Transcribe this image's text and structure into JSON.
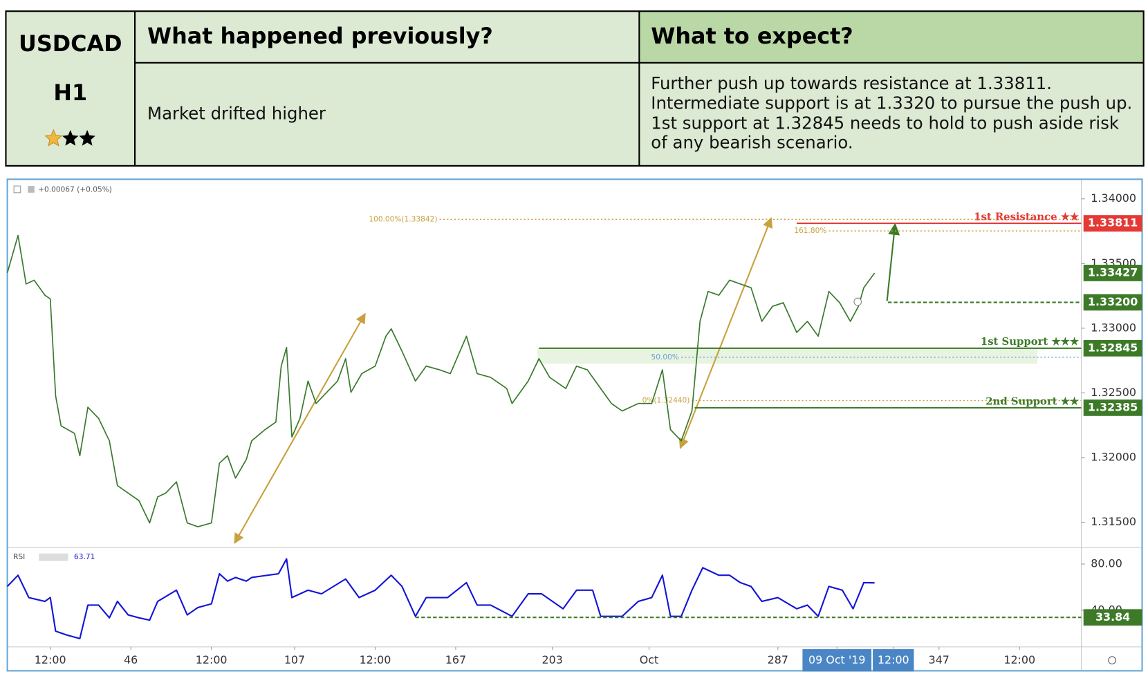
{
  "header": {
    "symbol": "USDCAD",
    "timeframe": "H1"
  },
  "table": {
    "columns": [
      "What happened previously?",
      "What to expect?"
    ],
    "rows": [
      [
        "Market drifted higher",
        [
          "Further push up towards resistance at 1.33811.",
          "Intermediate support is at 1.3320 to pursue the push up.",
          "1st support at 1.32845 needs to hold to push aside risk",
          "of any bearish scenario."
        ]
      ]
    ]
  },
  "chart_data": [
    {
      "type": "line",
      "subtitle": "+0.00067 (+0.05%)",
      "color": "#3a7a2e",
      "x": [
        0,
        4,
        7,
        10,
        14,
        16,
        18,
        20,
        25,
        27,
        30,
        34,
        38,
        41,
        45,
        49,
        53,
        56,
        59,
        63,
        67,
        71,
        76,
        79,
        82,
        85,
        89,
        91,
        96,
        100,
        102,
        104,
        106,
        109,
        112,
        115,
        119,
        123,
        126,
        128,
        132,
        137,
        141,
        143,
        147,
        152,
        156,
        161,
        165,
        171,
        175,
        180,
        186,
        188,
        194,
        198,
        202,
        208,
        212,
        216,
        221,
        225,
        229,
        235,
        240,
        244,
        247,
        251,
        255,
        258,
        261,
        265,
        269,
        273,
        277,
        281,
        285,
        289,
        294,
        298,
        302,
        306,
        310,
        314,
        317,
        319,
        323
      ],
      "values": [
        1.33428,
        1.33717,
        1.33342,
        1.33371,
        1.33255,
        1.33226,
        1.32476,
        1.32245,
        1.32187,
        1.32014,
        1.32389,
        1.32303,
        1.32129,
        1.31783,
        1.31725,
        1.31667,
        1.31494,
        1.31696,
        1.31725,
        1.31812,
        1.31494,
        1.31465,
        1.31494,
        1.31956,
        1.32014,
        1.31841,
        1.31985,
        1.32129,
        1.32216,
        1.32274,
        1.32707,
        1.32851,
        1.32158,
        1.32303,
        1.32591,
        1.32418,
        1.32505,
        1.32591,
        1.32764,
        1.32505,
        1.32649,
        1.32707,
        1.32938,
        1.32995,
        1.32822,
        1.32591,
        1.32707,
        1.32678,
        1.32649,
        1.32938,
        1.32649,
        1.3262,
        1.32534,
        1.32418,
        1.32591,
        1.32764,
        1.3262,
        1.32534,
        1.32707,
        1.32678,
        1.32534,
        1.32418,
        1.3236,
        1.32418,
        1.32418,
        1.32678,
        1.32216,
        1.32129,
        1.3236,
        1.33053,
        1.33284,
        1.33255,
        1.33371,
        1.33342,
        1.33313,
        1.33053,
        1.33169,
        1.33197,
        1.32967,
        1.33053,
        1.32938,
        1.33284,
        1.33197,
        1.33053,
        1.33169,
        1.33313,
        1.33427
      ],
      "xlim": [
        0,
        400
      ],
      "xticks": [
        {
          "value": 16,
          "label": "12:00"
        },
        46,
        {
          "value": 76,
          "label": "12:00"
        },
        107,
        {
          "value": 137,
          "label": "12:00"
        },
        167,
        203,
        {
          "value": 239,
          "label": "Oct"
        },
        287,
        {
          "value": 309,
          "label": "09 Oct '19"
        },
        {
          "value": 330,
          "label": "12:00"
        },
        347,
        {
          "value": 377,
          "label": "12:00"
        }
      ],
      "ylim": [
        1.3131,
        1.3414
      ],
      "yticks": [
        {
          "value": 1.34,
          "label": "1.34000"
        },
        {
          "value": 1.335,
          "label": "1.33500"
        },
        {
          "value": 1.33,
          "label": "1.33000"
        },
        {
          "value": 1.325,
          "label": "1.32500"
        },
        {
          "value": 1.32,
          "label": "1.32000"
        },
        {
          "value": 1.315,
          "label": "1.31500"
        }
      ],
      "levels": [
        {
          "name": "1st Resistance ★★",
          "value": 1.33811,
          "color": "#e53935",
          "line": "solid",
          "x_from": 294
        },
        {
          "value": 1.332,
          "value_label": "1.33200",
          "color": "#3d7a28",
          "line": "dashed",
          "x_from": 328
        },
        {
          "name": "1st Support ★★★",
          "value": 1.32845,
          "color": "#3d7a28",
          "line": "solid",
          "x_from": 198
        },
        {
          "name": "2nd Support ★★",
          "value": 1.32385,
          "color": "#3d7a28",
          "line": "solid",
          "x_from": 256
        }
      ],
      "fib": [
        {
          "label": "100.00%(1.33842)",
          "value": 1.33842,
          "color": "#c9a13e",
          "x_from": 161
        },
        {
          "label": "161.80%",
          "value": 1.33752,
          "color": "#c9a13e",
          "x_from": 306
        },
        {
          "label": "50.00%",
          "value": 1.32776,
          "color": "#6fa0d0",
          "x_from": 251
        },
        {
          "label": "0%(1.32440)",
          "value": 1.3244,
          "color": "#c9a13e",
          "x_from": 255
        }
      ]
    },
    {
      "type": "line",
      "title": "RSI",
      "color": "#1515d6",
      "x": [
        0,
        4,
        8,
        14,
        16,
        18,
        22,
        27,
        30,
        34,
        38,
        41,
        45,
        49,
        53,
        56,
        63,
        67,
        71,
        76,
        79,
        82,
        85,
        89,
        91,
        101,
        104,
        106,
        112,
        117,
        126,
        131,
        137,
        143,
        147,
        152,
        156,
        164,
        171,
        175,
        180,
        188,
        194,
        199,
        207,
        212,
        218,
        221,
        229,
        235,
        240,
        244,
        247,
        251,
        255,
        259,
        265,
        269,
        273,
        277,
        281,
        287,
        294,
        298,
        302,
        306,
        311,
        315,
        319,
        323
      ],
      "values": [
        60.6,
        70.3,
        51.0,
        47.7,
        51.0,
        21.9,
        18.7,
        15.5,
        44.5,
        44.5,
        33.5,
        47.7,
        36.0,
        33.5,
        31.5,
        47.7,
        57.4,
        36.0,
        42.4,
        45.6,
        71.6,
        65.2,
        68.4,
        65.2,
        68.4,
        71.6,
        84.5,
        51.0,
        57.4,
        54.2,
        67.1,
        51.0,
        57.4,
        70.3,
        60.6,
        34.8,
        51.0,
        51.0,
        63.9,
        44.5,
        44.5,
        34.8,
        54.2,
        54.2,
        41.3,
        57.4,
        57.4,
        34.8,
        34.8,
        47.7,
        51.0,
        70.3,
        34.8,
        34.8,
        57.4,
        76.8,
        70.3,
        70.3,
        63.9,
        60.6,
        47.7,
        51.0,
        41.3,
        44.5,
        34.8,
        60.6,
        57.4,
        41.3,
        63.9,
        63.71
      ],
      "ylim": [
        9,
        93
      ],
      "yticks": [
        {
          "value": 80,
          "label": "80.00"
        },
        {
          "value": 40,
          "label": "40.00"
        }
      ],
      "levels": [
        {
          "value": 33.84,
          "color": "#3d7a28",
          "line": "dashed",
          "x_from": 152
        }
      ]
    }
  ]
}
